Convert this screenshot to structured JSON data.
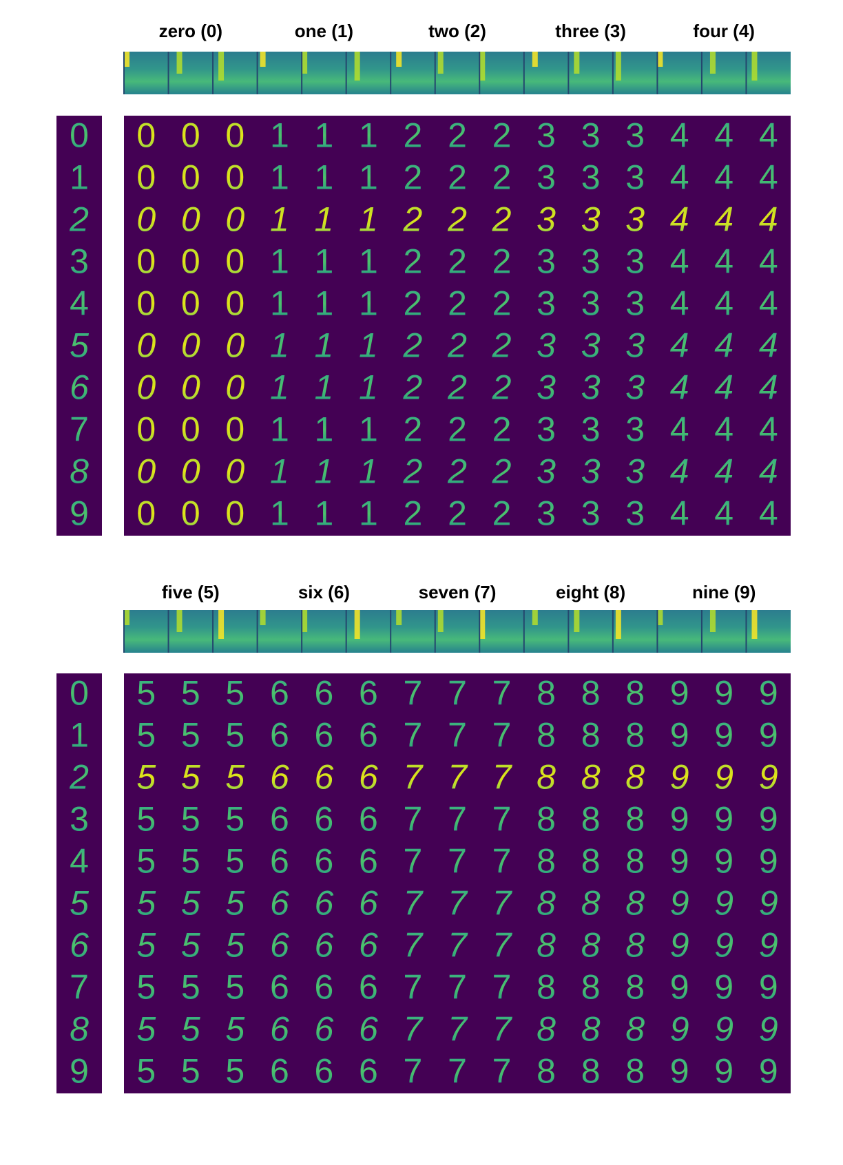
{
  "panels": [
    {
      "classes": [
        {
          "label": "zero (0)",
          "digit": "0"
        },
        {
          "label": "one (1)",
          "digit": "1"
        },
        {
          "label": "two (2)",
          "digit": "2"
        },
        {
          "label": "three (3)",
          "digit": "3"
        },
        {
          "label": "four (4)",
          "digit": "4"
        }
      ],
      "styles": [
        "0",
        "1",
        "2",
        "3",
        "4",
        "5",
        "6",
        "7",
        "8",
        "9"
      ]
    },
    {
      "classes": [
        {
          "label": "five (5)",
          "digit": "5"
        },
        {
          "label": "six (6)",
          "digit": "6"
        },
        {
          "label": "seven (7)",
          "digit": "7"
        },
        {
          "label": "eight (8)",
          "digit": "8"
        },
        {
          "label": "nine (9)",
          "digit": "9"
        }
      ],
      "styles": [
        "0",
        "1",
        "2",
        "3",
        "4",
        "5",
        "6",
        "7",
        "8",
        "9"
      ]
    }
  ]
}
